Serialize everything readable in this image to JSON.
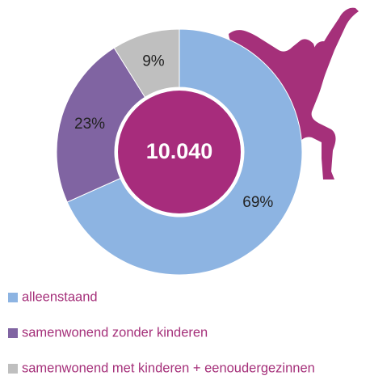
{
  "chart_data": {
    "type": "donut",
    "center_label": "10.040",
    "categories": [
      "alleenstaand",
      "samenwonend zonder kinderen",
      "samenwonend met kinderen + eenoudergezinnen"
    ],
    "values": [
      69,
      23,
      9
    ],
    "value_labels": [
      "69%",
      "23%",
      "9%"
    ],
    "colors": [
      "#8db4e2",
      "#8064a2",
      "#bfbfbf"
    ],
    "legend": "bottom"
  }
}
